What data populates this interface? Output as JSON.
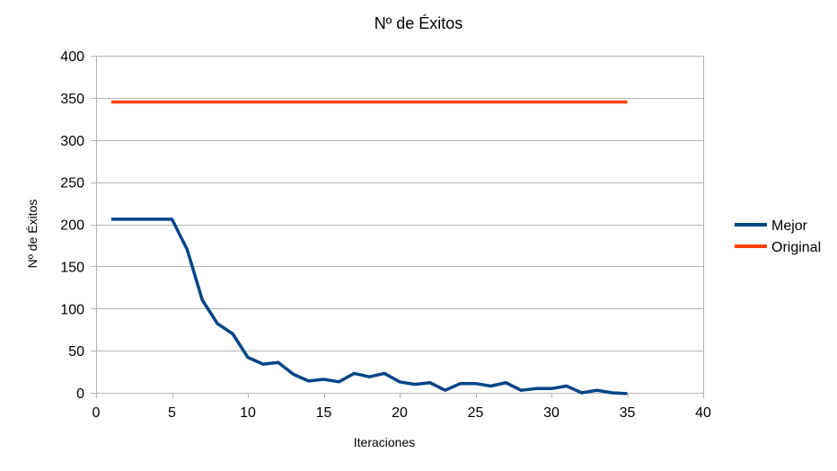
{
  "chart_data": {
    "type": "line",
    "title": "Nº de Éxitos",
    "xlabel": "Iteraciones",
    "ylabel": "Nº de Éxitos",
    "xlim": [
      0,
      40
    ],
    "ylim": [
      0,
      400
    ],
    "xticks": [
      0,
      5,
      10,
      15,
      20,
      25,
      30,
      35,
      40
    ],
    "yticks": [
      0,
      50,
      100,
      150,
      200,
      250,
      300,
      350,
      400
    ],
    "grid": "horizontal",
    "legend_position": "right",
    "x": [
      1,
      2,
      3,
      4,
      5,
      6,
      7,
      8,
      9,
      10,
      11,
      12,
      13,
      14,
      15,
      16,
      17,
      18,
      19,
      20,
      21,
      22,
      23,
      24,
      25,
      26,
      27,
      28,
      29,
      30,
      31,
      32,
      33,
      34,
      35
    ],
    "series": [
      {
        "name": "Mejor",
        "color": "#004586",
        "values": [
          206,
          206,
          206,
          206,
          206,
          170,
          110,
          82,
          70,
          42,
          34,
          36,
          22,
          14,
          16,
          13,
          23,
          19,
          23,
          13,
          10,
          12,
          3,
          11,
          11,
          8,
          12,
          3,
          5,
          5,
          8,
          0,
          3,
          0,
          -1
        ]
      },
      {
        "name": "Original",
        "color": "#ff420e",
        "values": [
          345,
          345,
          345,
          345,
          345,
          345,
          345,
          345,
          345,
          345,
          345,
          345,
          345,
          345,
          345,
          345,
          345,
          345,
          345,
          345,
          345,
          345,
          345,
          345,
          345,
          345,
          345,
          345,
          345,
          345,
          345,
          345,
          345,
          345,
          345
        ]
      }
    ]
  },
  "colors": {
    "grid": "#b3b3b3",
    "axis": "#b3b3b3"
  }
}
